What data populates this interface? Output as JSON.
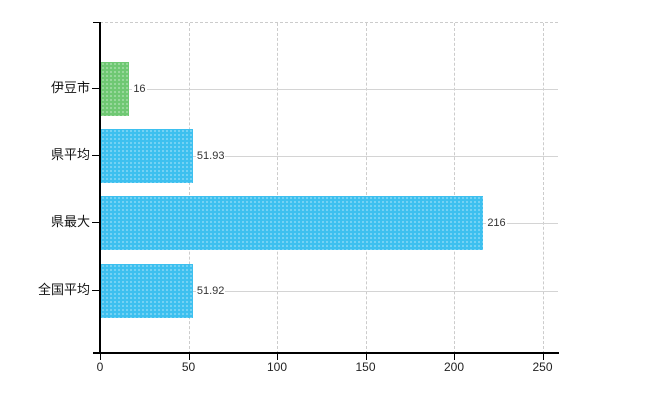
{
  "chart_data": {
    "type": "bar",
    "orientation": "horizontal",
    "title": "",
    "xlabel": "",
    "ylabel": "",
    "categories": [
      "伊豆市",
      "県平均",
      "県最大",
      "全国平均"
    ],
    "values": [
      16,
      51.93,
      216,
      51.92
    ],
    "value_labels": [
      "16",
      "51.93",
      "216",
      "51.92"
    ],
    "bar_colors": [
      "#6fc873",
      "#3dc0ef",
      "#3dc0ef",
      "#3dc0ef"
    ],
    "xlim": [
      0,
      250
    ],
    "x_ticks": [
      0,
      50,
      100,
      150,
      200,
      250
    ],
    "grid": "on",
    "legend": "none"
  },
  "colors": {
    "bar_blue": "#3dc0ef",
    "bar_green": "#6fc873",
    "axis": "#000000",
    "grid_horizontal": "#d4d4d4",
    "grid_vertical": "#cccccc",
    "text": "#222222",
    "background": "#ffffff"
  }
}
